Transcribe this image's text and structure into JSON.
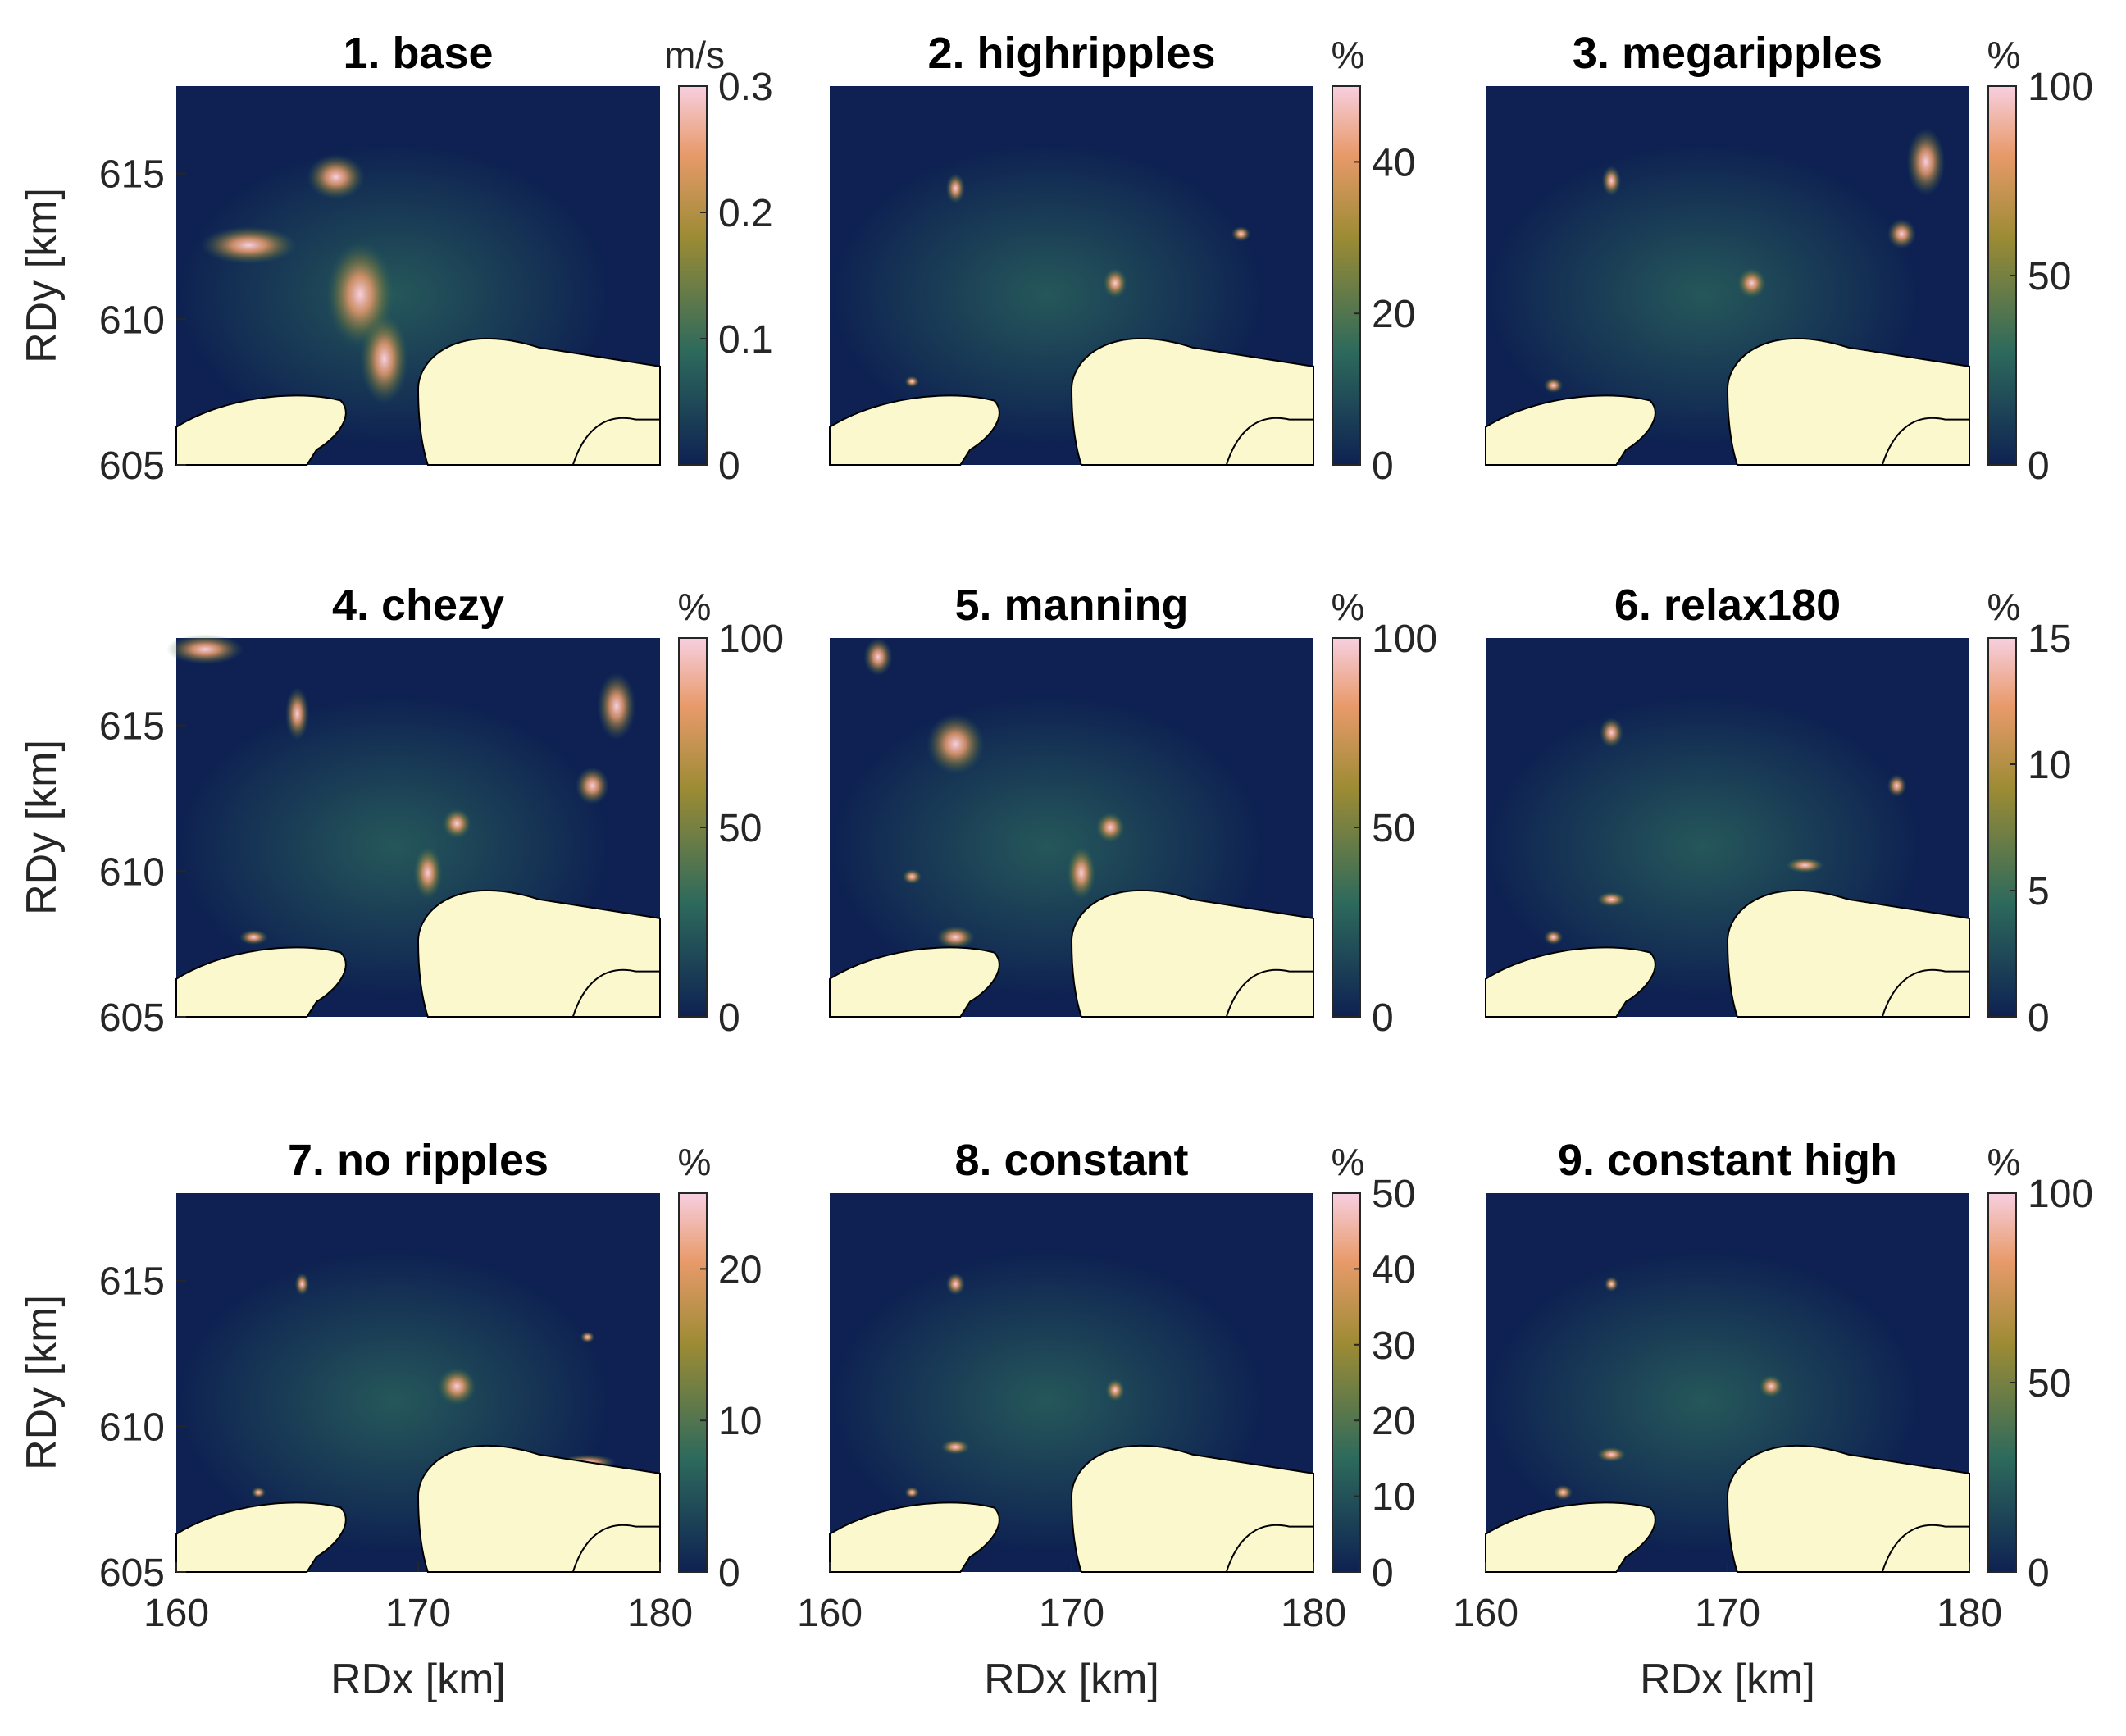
{
  "figure": {
    "xlabel": "RDx [km]",
    "ylabel": "RDy [km]"
  },
  "chart_data": [
    {
      "type": "heatmap",
      "title": "1. base",
      "unit": "m/s",
      "xlabel": "",
      "ylabel": "RDy [km]",
      "xlim": [
        160,
        180
      ],
      "ylim": [
        605,
        618
      ],
      "xticks": [],
      "yticks": [
        605,
        610,
        615
      ],
      "clim": [
        0,
        0.3
      ],
      "cticks": [
        0,
        0.1,
        0.2,
        0.3
      ]
    },
    {
      "type": "heatmap",
      "title": "2. highripples",
      "unit": "%",
      "xlabel": "",
      "ylabel": "",
      "xlim": [
        160,
        180
      ],
      "ylim": [
        605,
        618
      ],
      "xticks": [],
      "yticks": [],
      "clim": [
        0,
        50
      ],
      "cticks": [
        0,
        20,
        40
      ]
    },
    {
      "type": "heatmap",
      "title": "3. megaripples",
      "unit": "%",
      "xlabel": "",
      "ylabel": "",
      "xlim": [
        160,
        180
      ],
      "ylim": [
        605,
        618
      ],
      "xticks": [],
      "yticks": [],
      "clim": [
        0,
        100
      ],
      "cticks": [
        0,
        50,
        100
      ]
    },
    {
      "type": "heatmap",
      "title": "4. chezy",
      "unit": "%",
      "xlabel": "",
      "ylabel": "RDy [km]",
      "xlim": [
        160,
        180
      ],
      "ylim": [
        605,
        618
      ],
      "xticks": [],
      "yticks": [
        605,
        610,
        615
      ],
      "clim": [
        0,
        100
      ],
      "cticks": [
        0,
        50,
        100
      ]
    },
    {
      "type": "heatmap",
      "title": "5. manning",
      "unit": "%",
      "xlabel": "",
      "ylabel": "",
      "xlim": [
        160,
        180
      ],
      "ylim": [
        605,
        618
      ],
      "xticks": [],
      "yticks": [],
      "clim": [
        0,
        100
      ],
      "cticks": [
        0,
        50,
        100
      ]
    },
    {
      "type": "heatmap",
      "title": "6. relax180",
      "unit": "%",
      "xlabel": "",
      "ylabel": "",
      "xlim": [
        160,
        180
      ],
      "ylim": [
        605,
        618
      ],
      "xticks": [],
      "yticks": [],
      "clim": [
        0,
        15
      ],
      "cticks": [
        0,
        5,
        10,
        15
      ]
    },
    {
      "type": "heatmap",
      "title": "7. no ripples",
      "unit": "%",
      "xlabel": "RDx [km]",
      "ylabel": "RDy [km]",
      "xlim": [
        160,
        180
      ],
      "ylim": [
        605,
        618
      ],
      "xticks": [
        160,
        170,
        180
      ],
      "yticks": [
        605,
        610,
        615
      ],
      "clim": [
        0,
        25
      ],
      "cticks": [
        0,
        10,
        20
      ]
    },
    {
      "type": "heatmap",
      "title": "8. constant",
      "unit": "%",
      "xlabel": "RDx [km]",
      "ylabel": "",
      "xlim": [
        160,
        180
      ],
      "ylim": [
        605,
        618
      ],
      "xticks": [
        160,
        170,
        180
      ],
      "yticks": [],
      "clim": [
        0,
        50
      ],
      "cticks": [
        0,
        10,
        20,
        30,
        40,
        50
      ]
    },
    {
      "type": "heatmap",
      "title": "9. constant high",
      "unit": "%",
      "xlabel": "RDx [km]",
      "ylabel": "",
      "xlim": [
        160,
        180
      ],
      "ylim": [
        605,
        618
      ],
      "xticks": [
        160,
        170,
        180
      ],
      "yticks": [],
      "clim": [
        0,
        100
      ],
      "cticks": [
        0,
        50,
        100
      ]
    }
  ],
  "colors": {
    "low": "#0e2152",
    "mid": "#2d6a5c",
    "midhigh": "#9c8b34",
    "high": "#e89a6a",
    "top": "#f7cfe0",
    "land": "#fbf8cd"
  }
}
